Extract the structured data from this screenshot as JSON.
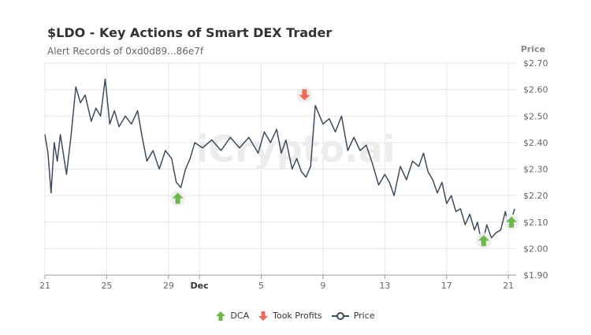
{
  "colors": {
    "line": "#3d4c5e",
    "dca": "#6cb84a",
    "took_profits": "#ee6b5c",
    "grid": "#e6e6e6",
    "axis_text": "#666666"
  },
  "chart_data": {
    "type": "line",
    "title": "$LDO - Key Actions of Smart DEX Trader",
    "subtitle": "Alert Records of 0xd0d89...86e7f",
    "ylabel": "Price",
    "watermark": "iCrypto.ai",
    "ylim": [
      1.9,
      2.7
    ],
    "y_ticks": [
      1.9,
      2.0,
      2.1,
      2.2,
      2.3,
      2.4,
      2.5,
      2.6,
      2.7
    ],
    "y_tick_labels": [
      "$1.90",
      "$2.00",
      "$2.10",
      "$2.20",
      "$2.30",
      "$2.40",
      "$2.50",
      "$2.60",
      "$2.70"
    ],
    "xlim": [
      0,
      30.5
    ],
    "x_ticks": [
      {
        "t": 0,
        "label": "21",
        "bold": false
      },
      {
        "t": 4,
        "label": "25",
        "bold": false
      },
      {
        "t": 8,
        "label": "29",
        "bold": false
      },
      {
        "t": 10,
        "label": "Dec",
        "bold": true
      },
      {
        "t": 14,
        "label": "5",
        "bold": false
      },
      {
        "t": 18,
        "label": "9",
        "bold": false
      },
      {
        "t": 22,
        "label": "13",
        "bold": false
      },
      {
        "t": 26,
        "label": "17",
        "bold": false
      },
      {
        "t": 30,
        "label": "21",
        "bold": false
      }
    ],
    "series": [
      {
        "name": "Price",
        "x": [
          0,
          0.2,
          0.4,
          0.6,
          0.8,
          1,
          1.4,
          1.7,
          2,
          2.3,
          2.6,
          3,
          3.3,
          3.6,
          3.9,
          4.2,
          4.5,
          4.8,
          5.2,
          5.6,
          6,
          6.3,
          6.6,
          7,
          7.4,
          7.8,
          8.2,
          8.5,
          8.8,
          9.1,
          9.4,
          9.7,
          10.2,
          10.8,
          11.4,
          12,
          12.6,
          13.2,
          13.8,
          14.2,
          14.6,
          15,
          15.3,
          15.6,
          16,
          16.3,
          16.6,
          16.9,
          17.2,
          17.5,
          18,
          18.4,
          18.8,
          19.2,
          19.6,
          20,
          20.4,
          20.8,
          21.2,
          21.6,
          22,
          22.3,
          22.6,
          23,
          23.4,
          23.8,
          24.2,
          24.5,
          24.8,
          25.1,
          25.4,
          25.7,
          26,
          26.3,
          26.6,
          26.9,
          27.2,
          27.5,
          27.8,
          28,
          28.3,
          28.6,
          28.9,
          29.2,
          29.5,
          29.8,
          30,
          30.2,
          30.4
        ],
        "values": [
          2.43,
          2.36,
          2.21,
          2.4,
          2.33,
          2.43,
          2.28,
          2.43,
          2.61,
          2.55,
          2.58,
          2.48,
          2.53,
          2.5,
          2.64,
          2.47,
          2.52,
          2.46,
          2.5,
          2.47,
          2.52,
          2.42,
          2.33,
          2.37,
          2.3,
          2.37,
          2.34,
          2.25,
          2.23,
          2.3,
          2.34,
          2.4,
          2.38,
          2.41,
          2.37,
          2.42,
          2.38,
          2.42,
          2.36,
          2.44,
          2.4,
          2.45,
          2.36,
          2.41,
          2.3,
          2.34,
          2.29,
          2.27,
          2.31,
          2.54,
          2.47,
          2.49,
          2.44,
          2.5,
          2.37,
          2.42,
          2.37,
          2.39,
          2.32,
          2.24,
          2.28,
          2.25,
          2.2,
          2.31,
          2.26,
          2.33,
          2.31,
          2.36,
          2.29,
          2.26,
          2.21,
          2.25,
          2.17,
          2.2,
          2.14,
          2.15,
          2.09,
          2.13,
          2.07,
          2.1,
          2.01,
          2.09,
          2.04,
          2.06,
          2.07,
          2.14,
          2.08,
          2.11,
          2.15
        ]
      }
    ],
    "markers": [
      {
        "type": "DCA",
        "t": 8.6,
        "price": 2.19
      },
      {
        "type": "Took Profits",
        "t": 16.8,
        "price": 2.58
      },
      {
        "type": "DCA",
        "t": 28.4,
        "price": 2.03
      },
      {
        "type": "DCA",
        "t": 30.2,
        "price": 2.1
      }
    ],
    "legend": {
      "dca": "DCA",
      "took_profits": "Took Profits",
      "price": "Price"
    }
  }
}
